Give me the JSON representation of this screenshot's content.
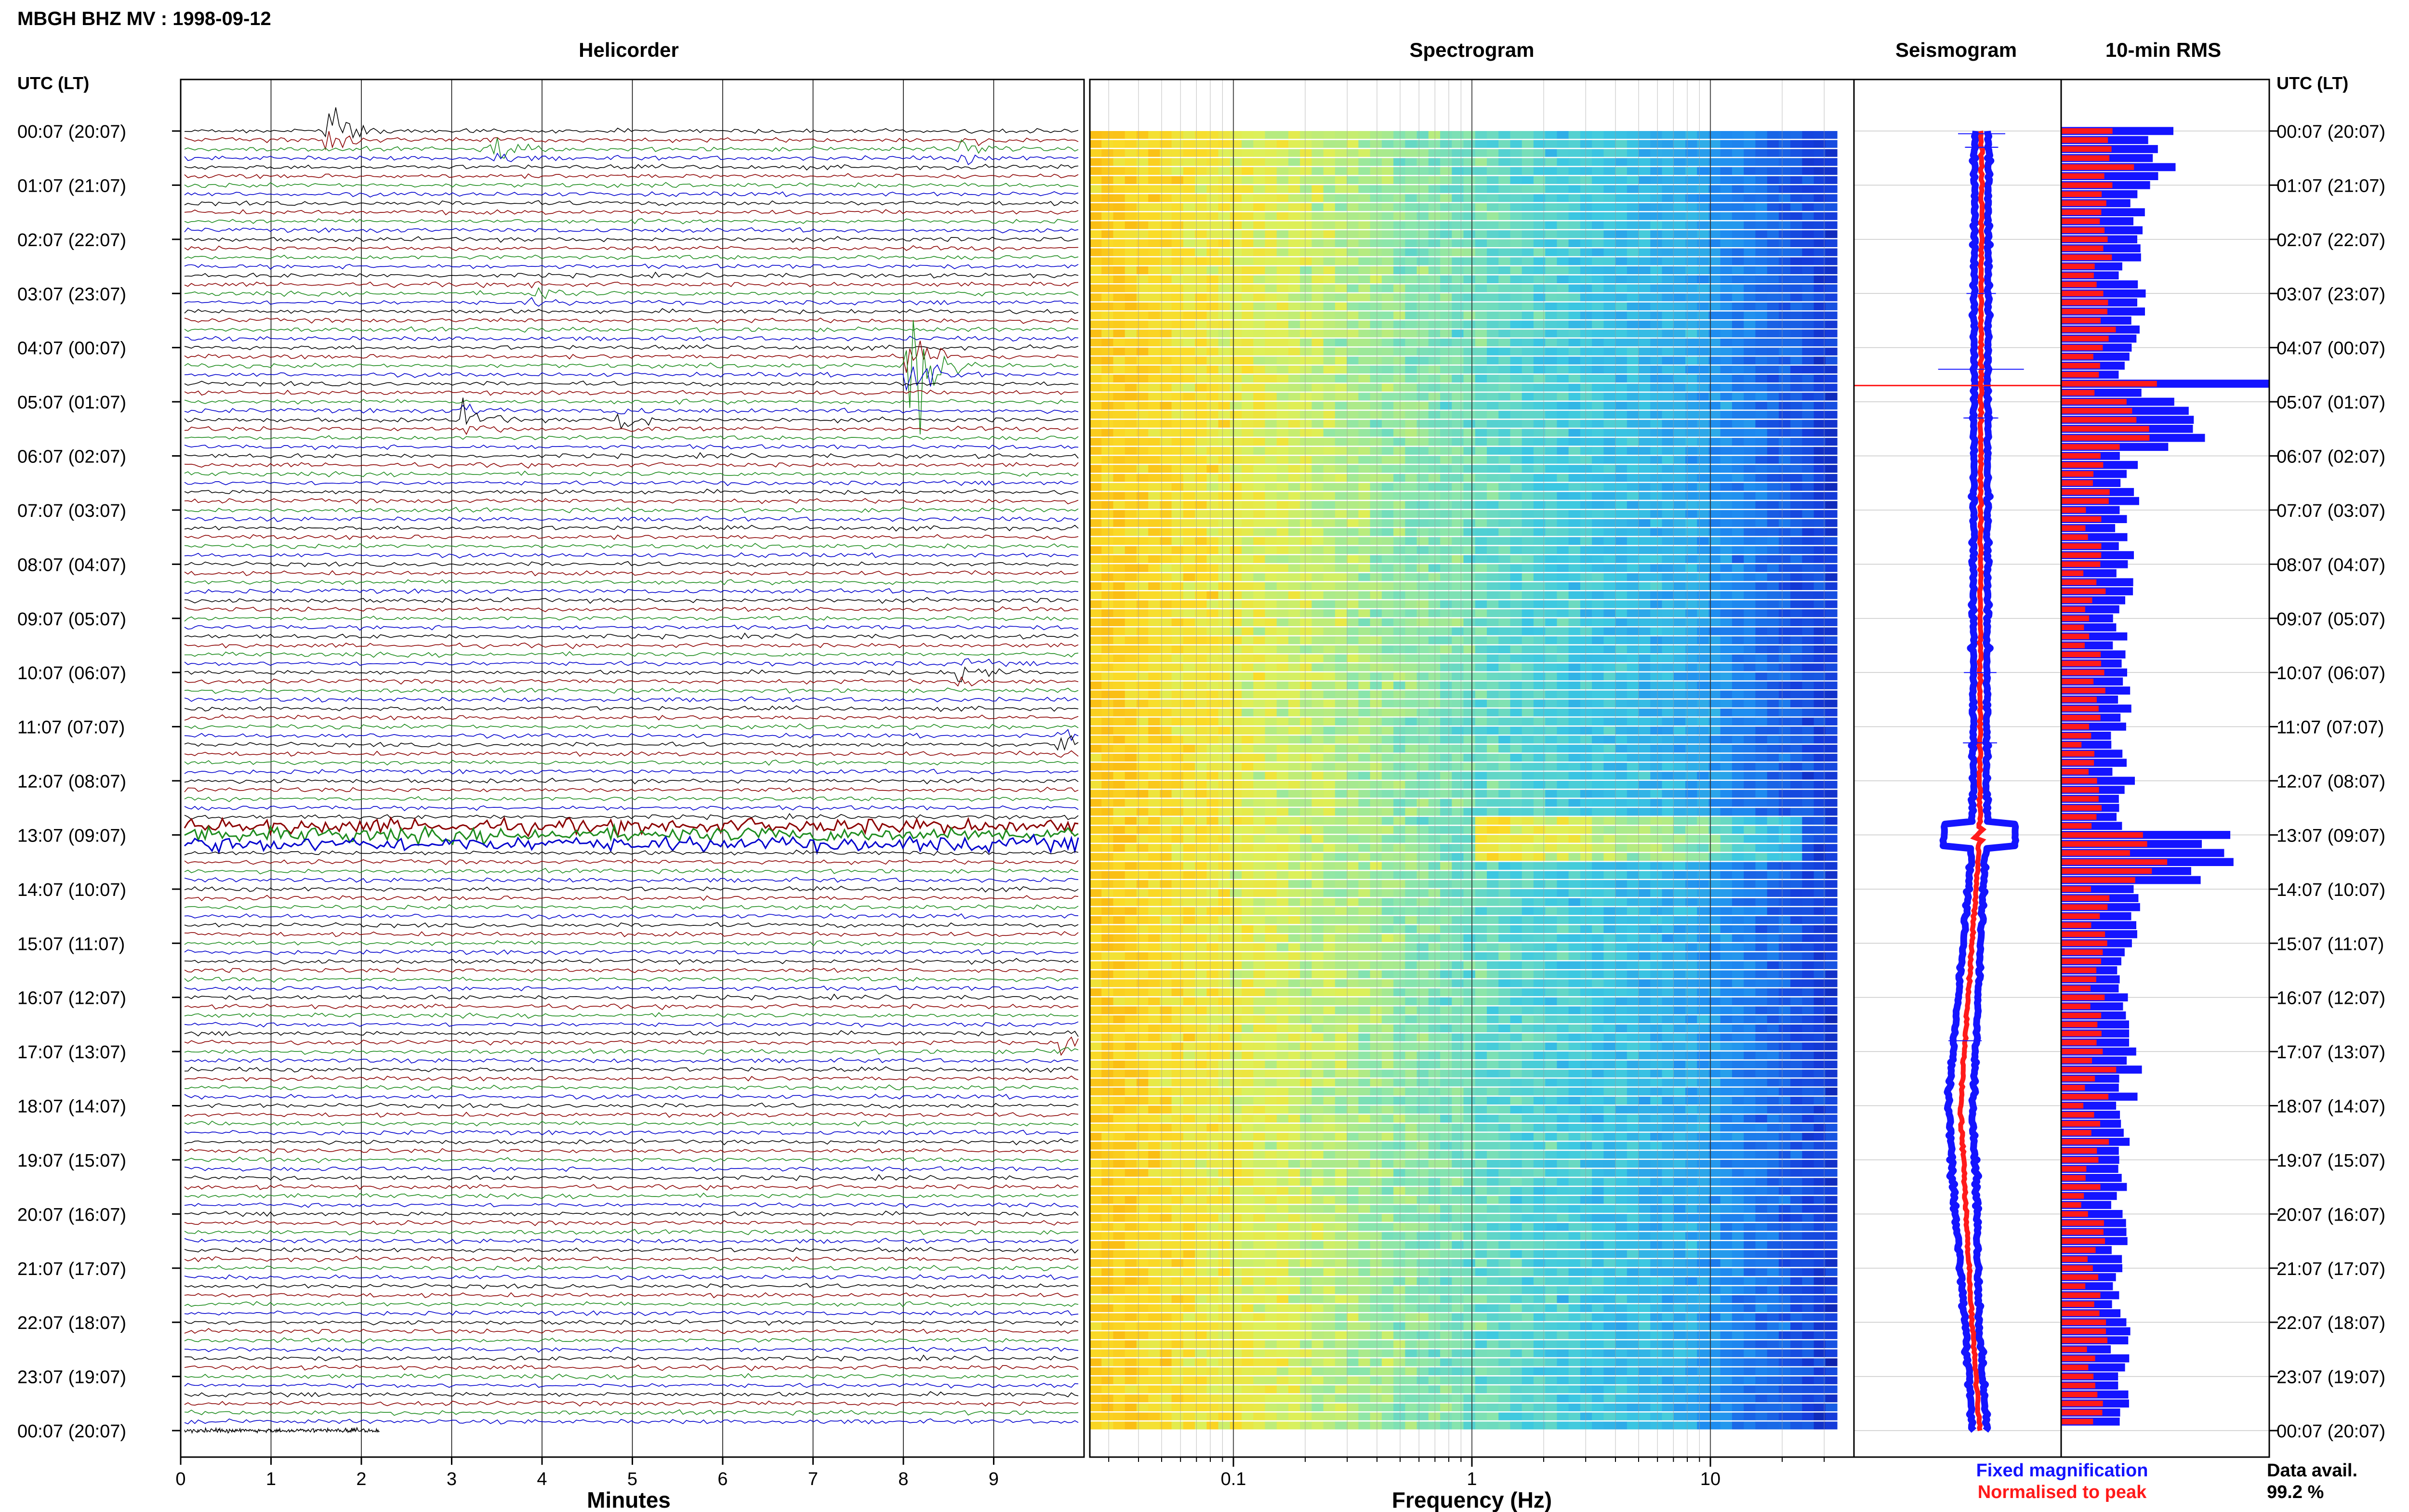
{
  "title": "MBGH BHZ MV : 1998-09-12",
  "panels": {
    "helicorder": "Helicorder",
    "spectrogram": "Spectrogram",
    "seismogram": "Seismogram",
    "rms": "10-min RMS"
  },
  "axes": {
    "time_header_left": "UTC (LT)",
    "time_header_right": "UTC (LT)",
    "minutes_label": "Minutes",
    "frequency_label": "Frequency (Hz)"
  },
  "legend": {
    "fixed": "Fixed magnification",
    "normalised": "Normalised to peak"
  },
  "data_avail": {
    "label": "Data avail.",
    "value": "99.2 %"
  },
  "colors": {
    "trace_cycle": [
      "#000000",
      "#8b0000",
      "#1e8c1e",
      "#0000cd"
    ],
    "fixed": "#1414ff",
    "normalised": "#ff1a1a",
    "grid": "#000000"
  },
  "chart_data": {
    "type": "heatmap",
    "time_labels": [
      "00:07 (20:07)",
      "01:07 (21:07)",
      "02:07 (22:07)",
      "03:07 (23:07)",
      "04:07 (00:07)",
      "05:07 (01:07)",
      "06:07 (02:07)",
      "07:07 (03:07)",
      "08:07 (04:07)",
      "09:07 (05:07)",
      "10:07 (06:07)",
      "11:07 (07:07)",
      "12:07 (08:07)",
      "13:07 (09:07)",
      "14:07 (10:07)",
      "15:07 (11:07)",
      "16:07 (12:07)",
      "17:07 (13:07)",
      "18:07 (14:07)",
      "19:07 (15:07)",
      "20:07 (16:07)",
      "21:07 (17:07)",
      "22:07 (18:07)",
      "23:07 (19:07)",
      "00:07 (20:07)"
    ],
    "minutes_ticks": [
      "0",
      "1",
      "2",
      "3",
      "4",
      "5",
      "6",
      "7",
      "8",
      "9"
    ],
    "minutes_range": [
      0,
      10
    ],
    "frequency_ticks": [
      "0.1",
      "1",
      "10"
    ],
    "frequency_scale": "log",
    "frequency_range": [
      0.025,
      40
    ],
    "events": [
      {
        "hour": 0.05,
        "minute": 1.7,
        "amp": 3.0
      },
      {
        "hour": 0.3,
        "minute": 3.5,
        "amp": 1.2
      },
      {
        "hour": 0.3,
        "minute": 8.7,
        "amp": 1.0
      },
      {
        "hour": 3.0,
        "minute": 3.9,
        "amp": 0.7
      },
      {
        "hour": 4.4,
        "minute": 8.1,
        "amp": 8.0
      },
      {
        "hour": 5.3,
        "minute": 3.2,
        "amp": 1.4
      },
      {
        "hour": 5.3,
        "minute": 4.9,
        "amp": 1.0
      },
      {
        "hour": 10.0,
        "minute": 8.7,
        "amp": 1.1
      },
      {
        "hour": 11.3,
        "minute": 9.8,
        "amp": 1.3
      },
      {
        "hour": 16.8,
        "minute": 9.8,
        "amp": 1.2
      }
    ],
    "tremor_window_hours": [
      12.8,
      13.2
    ],
    "rms_hourly": [
      2.0,
      1.6,
      1.4,
      1.5,
      1.4,
      2.6,
      1.4,
      1.3,
      1.3,
      1.2,
      1.3,
      1.2,
      1.3,
      3.0,
      1.4,
      1.3,
      1.3,
      1.4,
      1.3,
      1.2,
      1.2,
      1.2,
      1.2,
      1.2
    ]
  }
}
